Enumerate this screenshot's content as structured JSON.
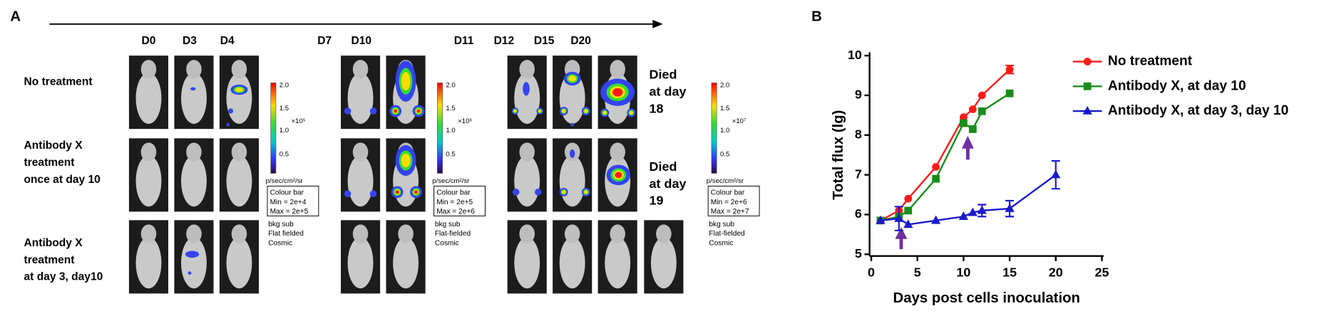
{
  "panel_a": {
    "label": "A",
    "days": [
      "D0",
      "D3",
      "D4",
      "D7",
      "D10",
      "D11",
      "D12",
      "D15",
      "D20"
    ],
    "rows": [
      [
        "No treatment"
      ],
      [
        "Antibody X",
        "treatment",
        "once at day 10"
      ],
      [
        "Antibody X",
        "treatment",
        "at day 3, day10"
      ]
    ],
    "colorbars": [
      {
        "ticks": [
          "2.0",
          "1.5",
          "1.0",
          "0.5"
        ],
        "scale": "×10⁵",
        "unit": "p/sec/cm²/sr",
        "box": [
          "Colour bar",
          "Min = 2e+4",
          "Max = 2e+5"
        ],
        "notes": [
          "bkg sub",
          "Flat fielded",
          "Cosmic"
        ]
      },
      {
        "ticks": [
          "2.0",
          "1.5",
          "1.0",
          "0.5"
        ],
        "scale": "×10⁶",
        "unit": "p/sec/cm²/sr",
        "box": [
          "Colour bar",
          "Min = 2e+5",
          "Max = 2e+6"
        ],
        "notes": [
          "bkg sub",
          "Flat-fielded",
          "Cosmic"
        ]
      },
      {
        "ticks": [
          "2.0",
          "1.5",
          "1.0",
          "0.5"
        ],
        "scale": "×10⁷",
        "unit": "p/sec/cm²/sr",
        "box": [
          "Colour bar",
          "Min = 2e+6",
          "Max = 2e+7"
        ],
        "notes": [
          "bkg sub",
          "Flat-fielded",
          "Cosmic"
        ]
      }
    ],
    "deaths": [
      [
        "Died",
        "at day",
        "18"
      ],
      [
        "Died",
        "at day",
        "19"
      ]
    ]
  },
  "panel_b_label": "B",
  "chart_data": {
    "type": "line",
    "x_label": "Days post cells inoculation",
    "y_label": "Total flux (lg)",
    "xlim": [
      0,
      25
    ],
    "xticks": [
      0,
      5,
      10,
      15,
      20,
      25
    ],
    "ylim": [
      5,
      10
    ],
    "yticks": [
      5,
      6,
      7,
      8,
      9,
      10
    ],
    "series": [
      {
        "name": "No treatment",
        "color": "#ff1a1a",
        "marker": "circle",
        "x": [
          1,
          3,
          4,
          7,
          10,
          11,
          12,
          15
        ],
        "values": [
          5.85,
          6.1,
          6.4,
          7.2,
          8.45,
          8.65,
          9.0,
          9.65
        ],
        "errors": [
          null,
          null,
          null,
          null,
          null,
          null,
          null,
          0.1
        ]
      },
      {
        "name": "Antibody X, at day 10",
        "color": "#1a8c1a",
        "marker": "square",
        "x": [
          1,
          3,
          4,
          7,
          10,
          11,
          12,
          15
        ],
        "values": [
          5.85,
          5.95,
          6.1,
          6.9,
          8.3,
          8.15,
          8.6,
          9.05
        ]
      },
      {
        "name": "Antibody X, at day 3, day 10",
        "color": "#1a1acc",
        "marker": "triangle",
        "x": [
          1,
          3,
          4,
          7,
          10,
          11,
          12,
          15,
          20
        ],
        "values": [
          5.85,
          5.9,
          5.75,
          5.85,
          5.95,
          6.05,
          6.1,
          6.15,
          7.0
        ],
        "errors": [
          null,
          0.3,
          null,
          null,
          null,
          null,
          0.15,
          0.2,
          0.35
        ]
      }
    ]
  }
}
